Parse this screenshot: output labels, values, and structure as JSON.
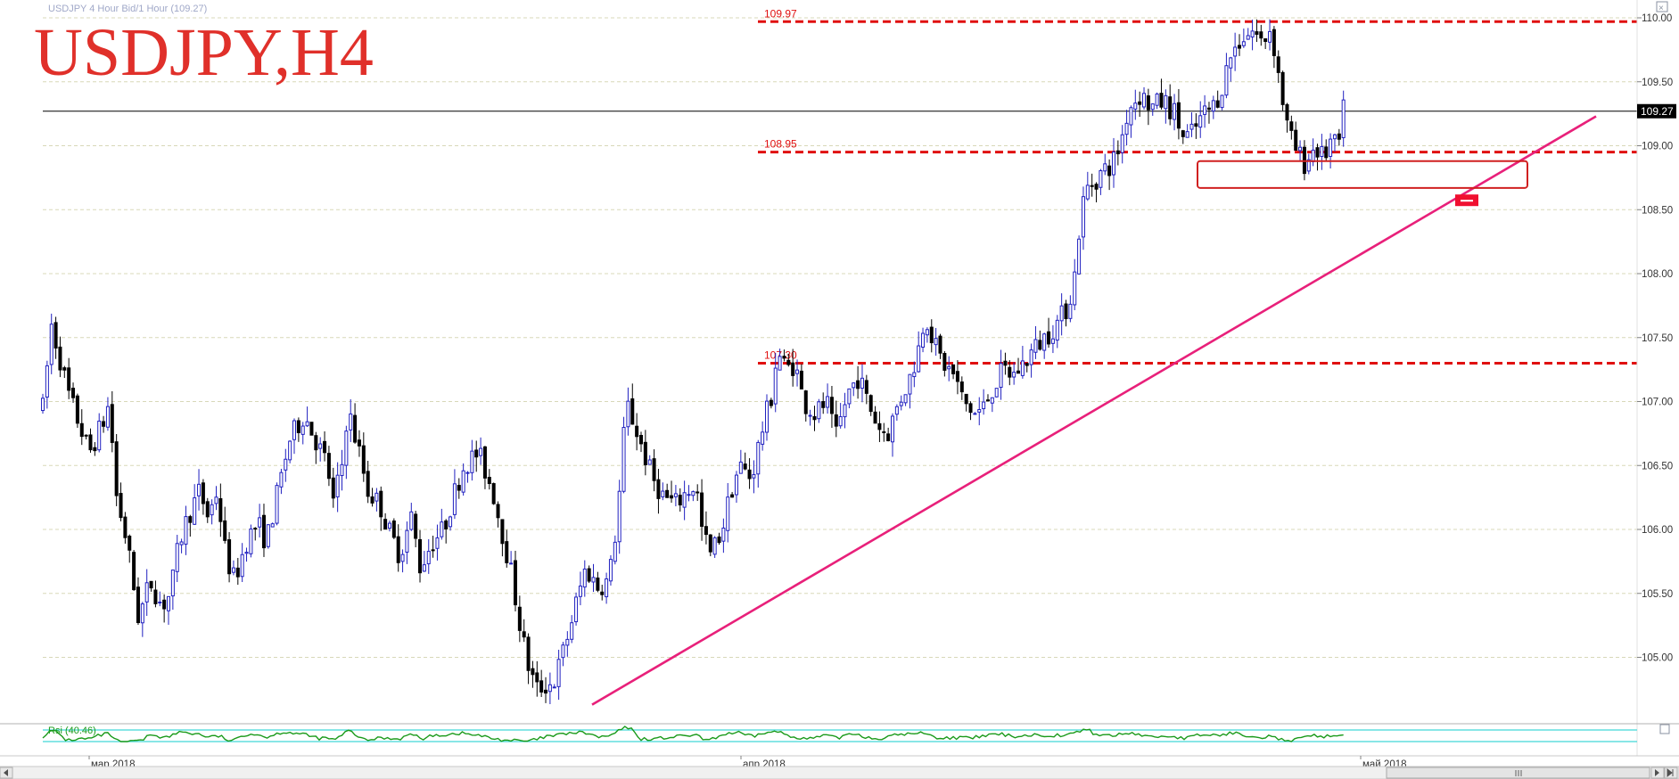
{
  "header": {
    "caption": "USDJPY 4 Hour Bid/1 Hour (109.27)",
    "big_title": "USDJPY,H4"
  },
  "colors": {
    "candle_up_outline": "#2020c0",
    "candle_down_fill": "#000000",
    "level": "#e01010",
    "trendline": "#e8207a",
    "zone": "#d02020",
    "rsi_line": "#1a9a1a",
    "rsi_band": "#40d8d8",
    "grid": "#d8d8b8"
  },
  "chart_data": {
    "type": "candlestick",
    "symbol": "USDJPY",
    "timeframe": "H4",
    "ylim": [
      104.5,
      110.0
    ],
    "y_ticks": [
      "110.00",
      "109.50",
      "109.00",
      "108.50",
      "108.00",
      "107.50",
      "107.00",
      "106.50",
      "106.00",
      "105.50",
      "105.00"
    ],
    "x_labels": [
      {
        "label": "мар 2018",
        "x": 0.0
      },
      {
        "label": "апр 2018",
        "x": 0.395
      },
      {
        "label": "май 2018",
        "x": 0.79
      }
    ],
    "current_price": 109.27,
    "current_price_label": "109.27",
    "levels": [
      {
        "label": "109.97",
        "value": 109.97
      },
      {
        "label": "108.95",
        "value": 108.95
      },
      {
        "label": "107.30",
        "value": 107.3
      }
    ],
    "trendline": [
      {
        "x": 0.345,
        "y": 104.63
      },
      {
        "x": 0.965,
        "y": 109.23
      }
    ],
    "support_zone": {
      "x_start": 0.71,
      "x_end": 0.905,
      "y_low": 108.67,
      "y_high": 108.88
    },
    "low_marker": {
      "x": 0.869,
      "y": 108.57
    },
    "price_path": [
      [
        0.0,
        106.95
      ],
      [
        0.006,
        107.6
      ],
      [
        0.018,
        107.05
      ],
      [
        0.032,
        106.6
      ],
      [
        0.042,
        106.85
      ],
      [
        0.046,
        107.0
      ],
      [
        0.05,
        106.3
      ],
      [
        0.058,
        105.9
      ],
      [
        0.066,
        105.3
      ],
      [
        0.074,
        105.6
      ],
      [
        0.082,
        105.4
      ],
      [
        0.088,
        105.5
      ],
      [
        0.094,
        105.9
      ],
      [
        0.1,
        106.1
      ],
      [
        0.108,
        106.3
      ],
      [
        0.114,
        106.1
      ],
      [
        0.12,
        106.3
      ],
      [
        0.126,
        105.8
      ],
      [
        0.132,
        105.6
      ],
      [
        0.14,
        105.9
      ],
      [
        0.148,
        106.05
      ],
      [
        0.154,
        105.9
      ],
      [
        0.162,
        106.3
      ],
      [
        0.17,
        106.7
      ],
      [
        0.18,
        106.9
      ],
      [
        0.188,
        106.7
      ],
      [
        0.196,
        106.5
      ],
      [
        0.2,
        106.2
      ],
      [
        0.206,
        106.5
      ],
      [
        0.21,
        106.95
      ],
      [
        0.218,
        106.6
      ],
      [
        0.224,
        106.3
      ],
      [
        0.232,
        106.2
      ],
      [
        0.238,
        106.0
      ],
      [
        0.246,
        105.8
      ],
      [
        0.254,
        106.1
      ],
      [
        0.26,
        105.7
      ],
      [
        0.268,
        105.9
      ],
      [
        0.276,
        106.0
      ],
      [
        0.284,
        106.3
      ],
      [
        0.29,
        106.5
      ],
      [
        0.3,
        106.6
      ],
      [
        0.31,
        106.3
      ],
      [
        0.316,
        106.0
      ],
      [
        0.322,
        105.7
      ],
      [
        0.328,
        105.3
      ],
      [
        0.334,
        104.95
      ],
      [
        0.34,
        104.75
      ],
      [
        0.346,
        104.78
      ],
      [
        0.352,
        104.8
      ],
      [
        0.36,
        105.1
      ],
      [
        0.368,
        105.45
      ],
      [
        0.374,
        105.7
      ],
      [
        0.382,
        105.55
      ],
      [
        0.39,
        105.6
      ],
      [
        0.396,
        106.1
      ],
      [
        0.402,
        107.0
      ],
      [
        0.408,
        106.8
      ],
      [
        0.414,
        106.6
      ],
      [
        0.42,
        106.4
      ],
      [
        0.428,
        106.25
      ],
      [
        0.436,
        106.2
      ],
      [
        0.444,
        106.3
      ],
      [
        0.45,
        106.35
      ],
      [
        0.454,
        106.0
      ],
      [
        0.46,
        105.8
      ],
      [
        0.468,
        106.0
      ],
      [
        0.474,
        106.3
      ],
      [
        0.48,
        106.5
      ],
      [
        0.488,
        106.4
      ],
      [
        0.496,
        106.8
      ],
      [
        0.502,
        107.05
      ],
      [
        0.506,
        107.4
      ],
      [
        0.512,
        107.25
      ],
      [
        0.518,
        107.3
      ],
      [
        0.524,
        107.0
      ],
      [
        0.532,
        106.9
      ],
      [
        0.54,
        107.0
      ],
      [
        0.546,
        106.7
      ],
      [
        0.554,
        107.05
      ],
      [
        0.562,
        107.2
      ],
      [
        0.568,
        107.0
      ],
      [
        0.576,
        106.8
      ],
      [
        0.582,
        106.75
      ],
      [
        0.59,
        107.0
      ],
      [
        0.598,
        107.2
      ],
      [
        0.604,
        107.45
      ],
      [
        0.608,
        107.7
      ],
      [
        0.614,
        107.45
      ],
      [
        0.62,
        107.3
      ],
      [
        0.628,
        107.2
      ],
      [
        0.634,
        107.0
      ],
      [
        0.642,
        106.9
      ],
      [
        0.648,
        106.95
      ],
      [
        0.654,
        107.1
      ],
      [
        0.662,
        107.25
      ],
      [
        0.668,
        107.2
      ],
      [
        0.676,
        107.3
      ],
      [
        0.682,
        107.4
      ],
      [
        0.69,
        107.5
      ],
      [
        0.698,
        107.6
      ],
      [
        0.704,
        107.7
      ],
      [
        0.71,
        107.9
      ],
      [
        0.714,
        108.35
      ],
      [
        0.718,
        108.65
      ],
      [
        0.724,
        108.72
      ],
      [
        0.73,
        108.8
      ],
      [
        0.736,
        108.85
      ],
      [
        0.742,
        109.0
      ],
      [
        0.748,
        109.3
      ],
      [
        0.756,
        109.4
      ],
      [
        0.764,
        109.3
      ],
      [
        0.772,
        109.35
      ],
      [
        0.78,
        109.25
      ],
      [
        0.786,
        109.05
      ],
      [
        0.792,
        109.1
      ],
      [
        0.8,
        109.25
      ],
      [
        0.806,
        109.3
      ],
      [
        0.812,
        109.45
      ],
      [
        0.818,
        109.7
      ],
      [
        0.826,
        109.85
      ],
      [
        0.834,
        109.9
      ],
      [
        0.84,
        109.8
      ],
      [
        0.846,
        109.93
      ],
      [
        0.852,
        109.5
      ],
      [
        0.858,
        109.1
      ],
      [
        0.864,
        108.95
      ],
      [
        0.87,
        108.85
      ],
      [
        0.876,
        109.0
      ],
      [
        0.882,
        108.9
      ],
      [
        0.888,
        109.05
      ],
      [
        0.892,
        108.95
      ],
      [
        0.896,
        109.27
      ]
    ],
    "rsi_label": "Rsi (40.46)",
    "rsi_value": 40.46
  }
}
